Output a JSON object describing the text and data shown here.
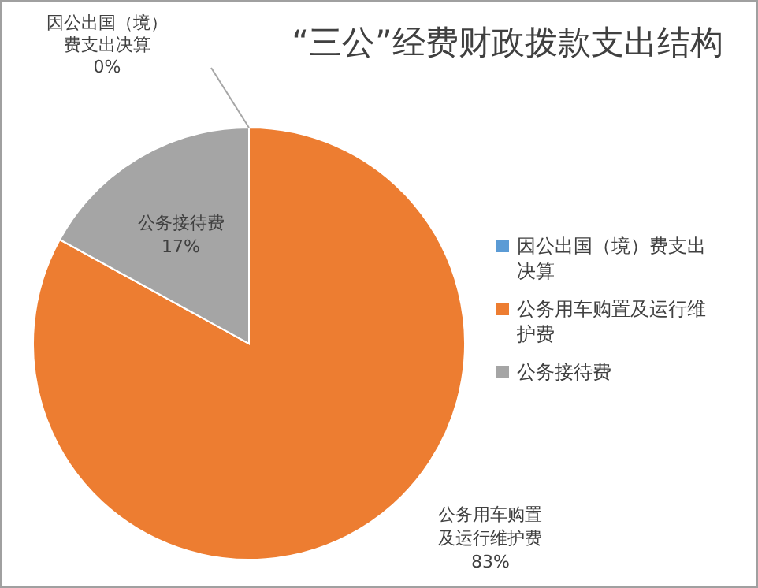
{
  "chart_data": {
    "type": "pie",
    "title": "“三公”经费财政拨款支出结构",
    "categories": [
      "因公出国（境）费支出决算",
      "公务用车购置及运行维护费",
      "公务接待费"
    ],
    "values": [
      0,
      83,
      17
    ],
    "value_labels": [
      "0%",
      "83%",
      "17%"
    ],
    "colors": [
      "#5b9bd5",
      "#ed7d31",
      "#a5a5a5"
    ],
    "legend": "right"
  }
}
